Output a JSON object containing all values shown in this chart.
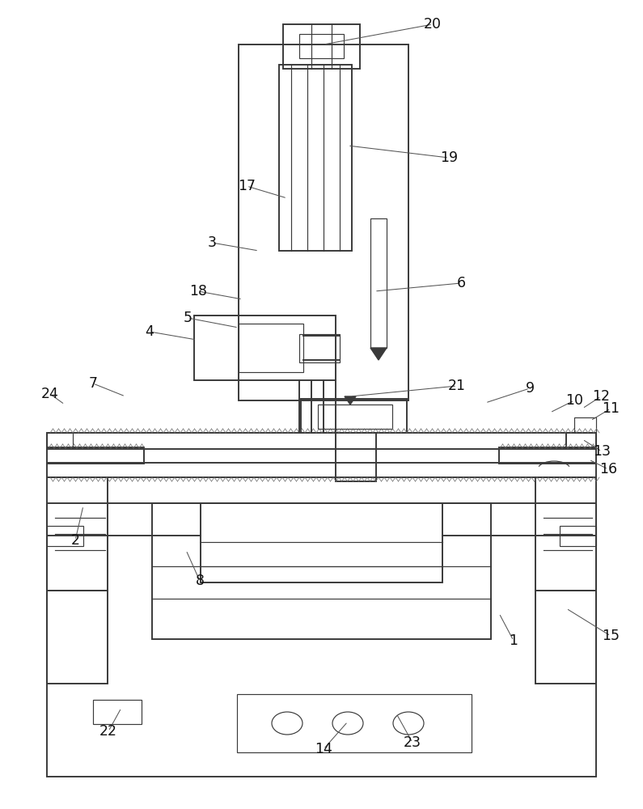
{
  "bg_color": "#ffffff",
  "lc": "#3a3a3a",
  "lw": 1.4,
  "tlw": 0.85,
  "label_fs": 12.5,
  "leader_lw": 0.75,
  "leader_color": "#555555"
}
